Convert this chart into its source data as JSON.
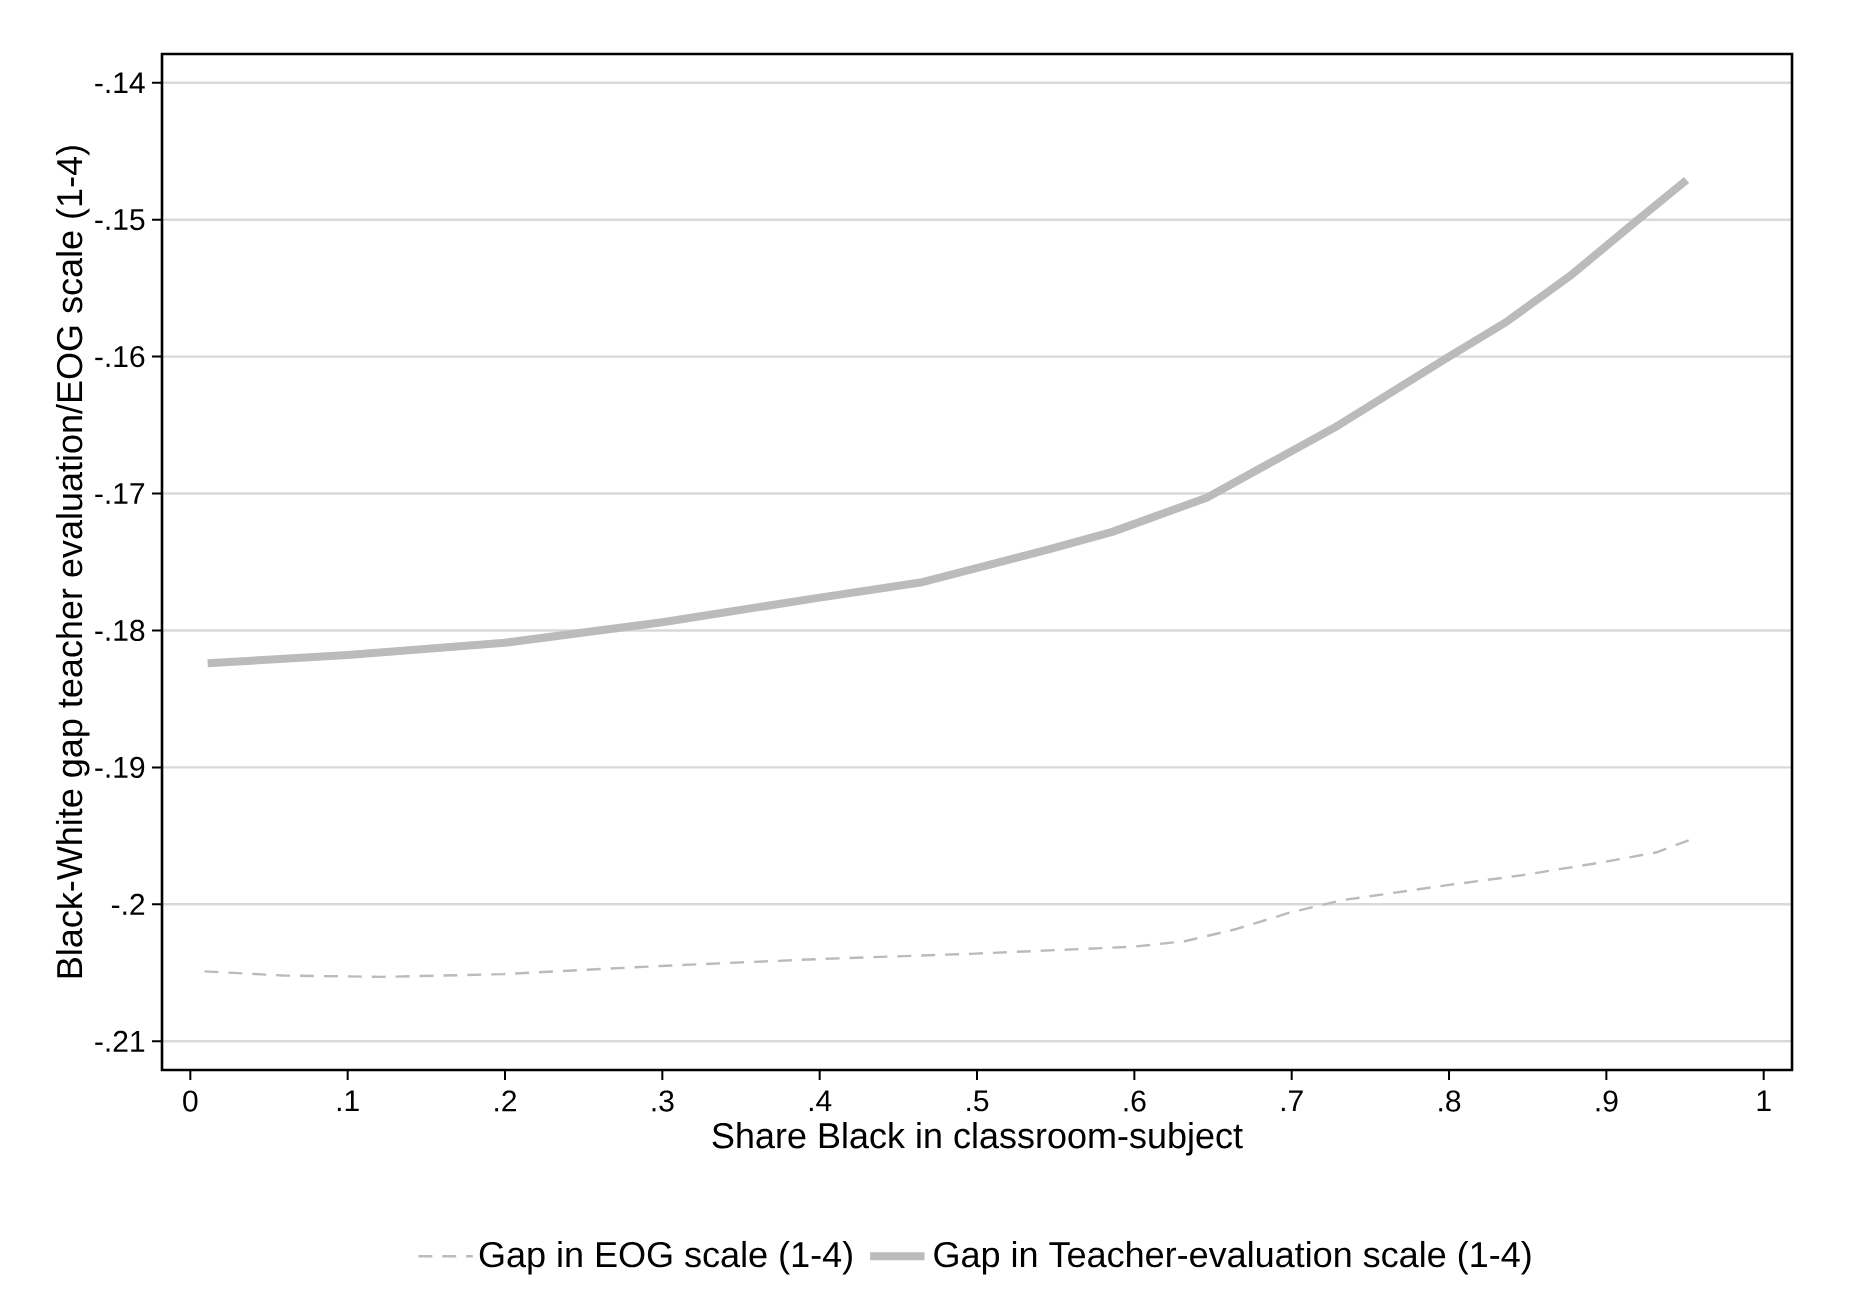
{
  "chart_data": {
    "type": "line",
    "xlabel": "Share Black in classroom-subject",
    "ylabel": "Black-White gap teacher evaluation/EOG scale (1-4)",
    "xlim": [
      -0.018,
      1.018
    ],
    "ylim": [
      -0.2121,
      -0.1379
    ],
    "xticks": [
      0,
      {
        "value": 0.1,
        "label": ".1"
      },
      {
        "value": 0.2,
        "label": ".2"
      },
      {
        "value": 0.3,
        "label": ".3"
      },
      {
        "value": 0.4,
        "label": ".4"
      },
      {
        "value": 0.5,
        "label": ".5"
      },
      {
        "value": 0.6,
        "label": ".6"
      },
      {
        "value": 0.7,
        "label": ".7"
      },
      {
        "value": 0.8,
        "label": ".8"
      },
      {
        "value": 0.9,
        "label": ".9"
      },
      1
    ],
    "yticks": [
      {
        "value": -0.21,
        "label": "-.21"
      },
      {
        "value": -0.2,
        "label": "-.2"
      },
      {
        "value": -0.19,
        "label": "-.19"
      },
      {
        "value": -0.18,
        "label": "-.18"
      },
      {
        "value": -0.17,
        "label": "-.17"
      },
      {
        "value": -0.16,
        "label": "-.16"
      },
      {
        "value": -0.15,
        "label": "-.15"
      },
      {
        "value": -0.14,
        "label": "-.14"
      }
    ],
    "grid": "y",
    "legend": "bottom",
    "marker": "none",
    "series": [
      {
        "name": "Gap in EOG scale (1-4)",
        "color": "#bbbbbb",
        "line_style": "dashed",
        "x": [
          0.009,
          0.059,
          0.122,
          0.199,
          0.299,
          0.399,
          0.499,
          0.599,
          0.632,
          0.665,
          0.699,
          0.732,
          0.799,
          0.845,
          0.899,
          0.932,
          0.953
        ],
        "values": [
          -0.2049,
          -0.2052,
          -0.2053,
          -0.2051,
          -0.2045,
          -0.204,
          -0.2036,
          -0.2031,
          -0.2027,
          -0.2018,
          -0.2006,
          -0.1997,
          -0.1986,
          -0.1979,
          -0.1969,
          -0.1962,
          -0.1953
        ]
      },
      {
        "name": "Gap in Teacher-evaluation scale (1-4)",
        "color": "#bbbbbb",
        "line_style": "solid",
        "x": [
          0.011,
          0.1,
          0.2,
          0.3,
          0.4,
          0.464,
          0.545,
          0.586,
          0.646,
          0.727,
          0.8,
          0.836,
          0.877,
          0.918,
          0.951
        ],
        "values": [
          -0.1824,
          -0.1818,
          -0.1809,
          -0.1794,
          -0.1776,
          -0.1765,
          -0.1741,
          -0.1728,
          -0.1703,
          -0.1652,
          -0.16,
          -0.1575,
          -0.1541,
          -0.1502,
          -0.1471
        ]
      }
    ]
  }
}
